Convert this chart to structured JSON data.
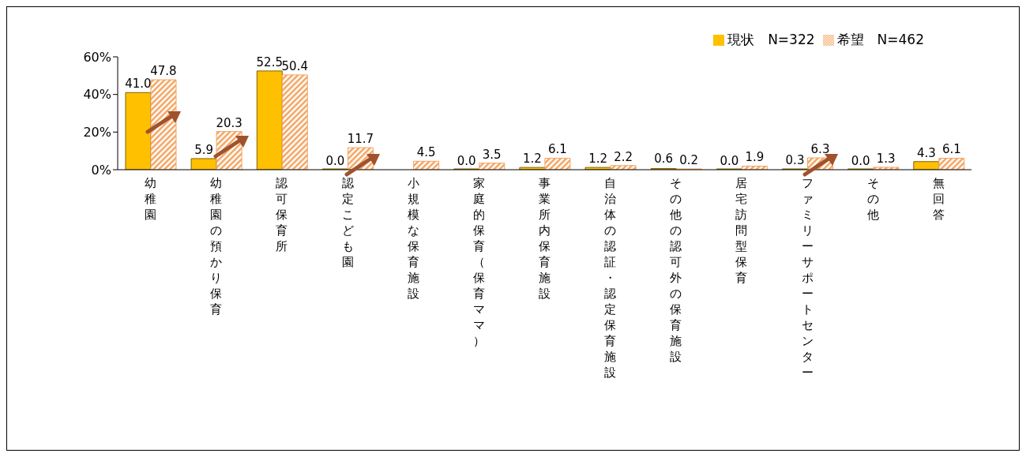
{
  "chart_data": {
    "type": "bar",
    "categories": [
      "幼稚園",
      "幼稚園の預かり保育",
      "認可保育所",
      "認定こども園",
      "小規模な保育施設",
      "家庭的保育（保育ママ）",
      "事業所内保育施設",
      "自治体の認証・認定保育施設",
      "その他の認可外の保育施設",
      "居宅訪問型保育",
      "ファミリーサポートセンター",
      "その他",
      "無回答"
    ],
    "series": [
      {
        "name": "現状　N=322",
        "color": "#ffc000",
        "values": [
          41.0,
          5.9,
          52.5,
          0.0,
          null,
          0.0,
          1.2,
          1.2,
          0.6,
          0.0,
          0.3,
          0.0,
          4.3
        ],
        "value_labels": [
          "41.0",
          "5.9",
          "52.5",
          "0.0",
          null,
          "0.0",
          "1.2",
          "1.2",
          "0.6",
          "0.0",
          "0.3",
          "0.0",
          "4.3"
        ]
      },
      {
        "name": "希望　N=462",
        "color": "#f4a460",
        "values": [
          47.8,
          20.3,
          50.4,
          11.7,
          4.5,
          3.5,
          6.1,
          2.2,
          0.2,
          1.9,
          6.3,
          1.3,
          6.1
        ],
        "value_labels": [
          "47.8",
          "20.3",
          "50.4",
          "11.7",
          "4.5",
          "3.5",
          "6.1",
          "2.2",
          "0.2",
          "1.9",
          "6.3",
          "1.3",
          "6.1"
        ]
      }
    ],
    "ylim": [
      0,
      60
    ],
    "yticks": [
      {
        "value": 0,
        "label": "0%"
      },
      {
        "value": 20,
        "label": "20%"
      },
      {
        "value": 40,
        "label": "40%"
      },
      {
        "value": 60,
        "label": "60%"
      }
    ],
    "grid": false,
    "legend": "top right"
  }
}
